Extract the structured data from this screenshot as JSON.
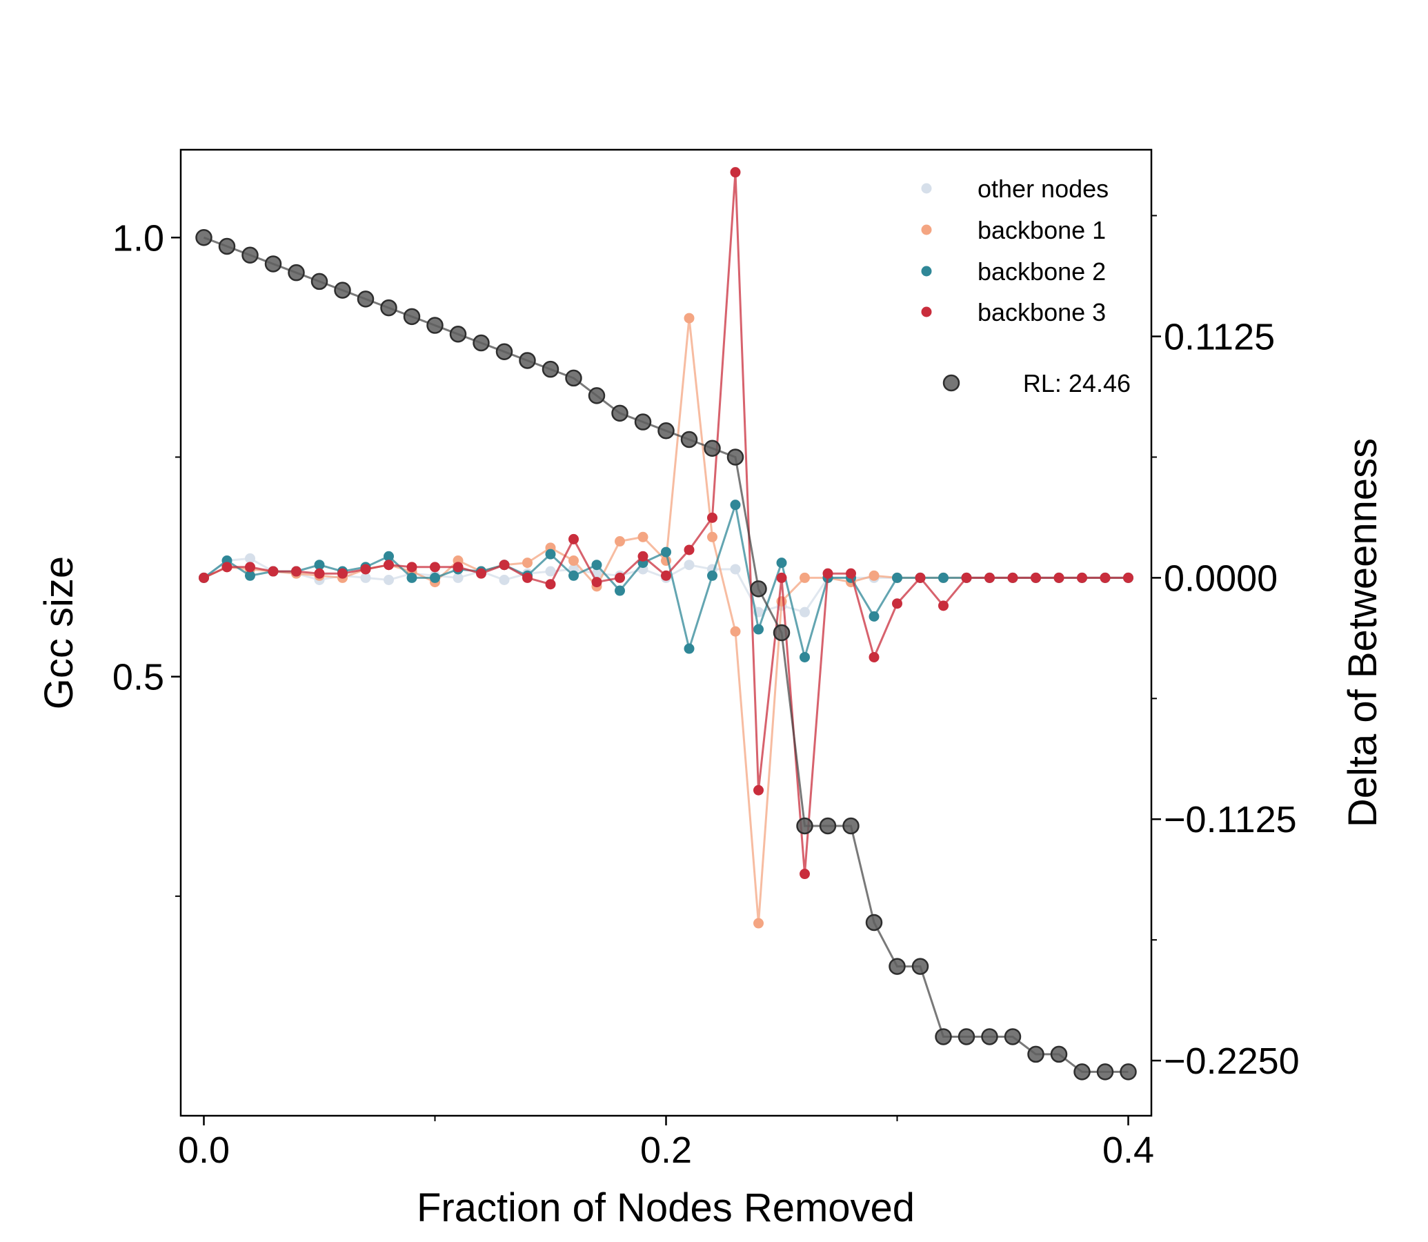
{
  "chart_data": {
    "type": "line",
    "xlabel": "Fraction of Nodes Removed",
    "ylabel_left": "Gcc size",
    "ylabel_right": "Delta of Betweenness",
    "xlim": [
      -0.01,
      0.41
    ],
    "ylim_left": [
      0.0,
      1.1
    ],
    "ylim_right": [
      -0.2507,
      0.1995
    ],
    "x_ticks": [
      {
        "value": 0.0,
        "label": "0.0"
      },
      {
        "value": 0.2,
        "label": "0.2"
      },
      {
        "value": 0.4,
        "label": "0.4"
      }
    ],
    "x_minor_ticks": [
      0.1,
      0.3
    ],
    "y_left_ticks": [
      {
        "value": 0.5,
        "label": "0.5"
      },
      {
        "value": 1.0,
        "label": "1.0"
      }
    ],
    "y_left_minor_ticks": [
      0.25,
      0.75
    ],
    "y_right_ticks": [
      {
        "value": 0.1125,
        "label": "0.1125"
      },
      {
        "value": 0.0,
        "label": "0.0000"
      },
      {
        "value": -0.1125,
        "label": "−0.1125"
      },
      {
        "value": -0.225,
        "label": "−0.2250"
      }
    ],
    "y_right_minor_ticks": [
      0.1688,
      0.05625,
      -0.05625,
      -0.16875
    ],
    "legend": {
      "position": "upper-right",
      "entries": [
        {
          "series": "other",
          "label": "other nodes"
        },
        {
          "series": "bb1",
          "label": "backbone 1"
        },
        {
          "series": "bb2",
          "label": "backbone 2"
        },
        {
          "series": "bb3",
          "label": "backbone 3"
        },
        {
          "series": "gcc",
          "label": "RL: 24.46"
        }
      ]
    },
    "gcc_series": {
      "id": "gcc",
      "name": "RL: 24.46",
      "color": "#404040",
      "axis": "left",
      "x": [
        0.0,
        0.01,
        0.02,
        0.03,
        0.04,
        0.05,
        0.06,
        0.07,
        0.08,
        0.09,
        0.1,
        0.11,
        0.12,
        0.13,
        0.14,
        0.15,
        0.16,
        0.17,
        0.18,
        0.19,
        0.2,
        0.21,
        0.22,
        0.23,
        0.24,
        0.25,
        0.26,
        0.27,
        0.28,
        0.29,
        0.3,
        0.31,
        0.32,
        0.33,
        0.34,
        0.35,
        0.36,
        0.37,
        0.38,
        0.39,
        0.4
      ],
      "y": [
        1.0,
        0.99,
        0.98,
        0.97,
        0.96,
        0.95,
        0.94,
        0.93,
        0.92,
        0.91,
        0.9,
        0.89,
        0.88,
        0.87,
        0.86,
        0.85,
        0.84,
        0.82,
        0.8,
        0.79,
        0.78,
        0.77,
        0.76,
        0.75,
        0.6,
        0.55,
        0.33,
        0.33,
        0.33,
        0.22,
        0.17,
        0.17,
        0.09,
        0.09,
        0.09,
        0.09,
        0.07,
        0.07,
        0.05,
        0.05,
        0.05
      ]
    },
    "delta_series": [
      {
        "id": "other",
        "name": "other nodes",
        "color": "#d6dfea",
        "axis": "right",
        "x": [
          0.0,
          0.01,
          0.02,
          0.03,
          0.04,
          0.05,
          0.06,
          0.07,
          0.08,
          0.09,
          0.1,
          0.11,
          0.12,
          0.13,
          0.14,
          0.15,
          0.16,
          0.17,
          0.18,
          0.19,
          0.2,
          0.21,
          0.22,
          0.23,
          0.24,
          0.25,
          0.26,
          0.27,
          0.28,
          0.29,
          0.3,
          0.31,
          0.32,
          0.33,
          0.34,
          0.35,
          0.36,
          0.37,
          0.38,
          0.39,
          0.4
        ],
        "y": [
          0.0,
          0.008,
          0.009,
          0.003,
          0.002,
          -0.001,
          0.001,
          0.0,
          -0.001,
          0.002,
          0.001,
          0.0,
          0.003,
          -0.001,
          0.002,
          0.003,
          0.004,
          0.002,
          0.001,
          0.004,
          0.0,
          0.006,
          0.004,
          0.004,
          -0.016,
          -0.013,
          -0.016,
          0.0,
          0.0,
          0.0,
          0.0,
          0.0,
          0.0,
          0.0,
          0.0,
          0.0,
          0.0,
          0.0,
          0.0,
          0.0,
          0.0
        ]
      },
      {
        "id": "bb1",
        "name": "backbone 1",
        "color": "#f4a582",
        "axis": "right",
        "x": [
          0.0,
          0.01,
          0.02,
          0.03,
          0.04,
          0.05,
          0.06,
          0.07,
          0.08,
          0.09,
          0.1,
          0.11,
          0.12,
          0.13,
          0.14,
          0.15,
          0.16,
          0.17,
          0.18,
          0.19,
          0.2,
          0.21,
          0.22,
          0.23,
          0.24,
          0.25,
          0.26,
          0.27,
          0.28,
          0.29,
          0.3,
          0.31,
          0.32,
          0.33,
          0.34,
          0.35,
          0.36,
          0.37,
          0.38,
          0.39,
          0.4
        ],
        "y": [
          0.0,
          0.005,
          0.004,
          0.003,
          0.002,
          0.001,
          0.0,
          0.004,
          0.006,
          0.003,
          -0.002,
          0.008,
          0.003,
          0.006,
          0.007,
          0.014,
          0.008,
          -0.004,
          0.017,
          0.019,
          0.008,
          0.121,
          0.019,
          -0.025,
          -0.161,
          -0.011,
          0.0,
          0.0,
          -0.002,
          0.001,
          0.0,
          0.0,
          0.0,
          0.0,
          0.0,
          0.0,
          0.0,
          0.0,
          0.0,
          0.0,
          0.0
        ]
      },
      {
        "id": "bb2",
        "name": "backbone 2",
        "color": "#2f8797",
        "axis": "right",
        "x": [
          0.0,
          0.01,
          0.02,
          0.03,
          0.04,
          0.05,
          0.06,
          0.07,
          0.08,
          0.09,
          0.1,
          0.11,
          0.12,
          0.13,
          0.14,
          0.15,
          0.16,
          0.17,
          0.18,
          0.19,
          0.2,
          0.21,
          0.22,
          0.23,
          0.24,
          0.25,
          0.26,
          0.27,
          0.28,
          0.29,
          0.3,
          0.31,
          0.32,
          0.33,
          0.34,
          0.35,
          0.36,
          0.37,
          0.38,
          0.39,
          0.4
        ],
        "y": [
          0.0,
          0.008,
          0.001,
          0.003,
          0.003,
          0.006,
          0.003,
          0.005,
          0.01,
          0.0,
          0.0,
          0.004,
          0.003,
          0.006,
          0.001,
          0.011,
          0.001,
          0.006,
          -0.006,
          0.007,
          0.012,
          -0.033,
          0.001,
          0.034,
          -0.024,
          0.007,
          -0.037,
          0.0,
          0.0,
          -0.018,
          0.0,
          0.0,
          0.0,
          0.0,
          0.0,
          0.0,
          0.0,
          0.0,
          0.0,
          0.0,
          0.0
        ]
      },
      {
        "id": "bb3",
        "name": "backbone 3",
        "color": "#c92d3c",
        "axis": "right",
        "x": [
          0.0,
          0.01,
          0.02,
          0.03,
          0.04,
          0.05,
          0.06,
          0.07,
          0.08,
          0.09,
          0.1,
          0.11,
          0.12,
          0.13,
          0.14,
          0.15,
          0.16,
          0.17,
          0.18,
          0.19,
          0.2,
          0.21,
          0.22,
          0.23,
          0.24,
          0.25,
          0.26,
          0.27,
          0.28,
          0.29,
          0.3,
          0.31,
          0.32,
          0.33,
          0.34,
          0.35,
          0.36,
          0.37,
          0.38,
          0.39,
          0.4
        ],
        "y": [
          0.0,
          0.005,
          0.005,
          0.003,
          0.003,
          0.002,
          0.002,
          0.004,
          0.006,
          0.005,
          0.005,
          0.005,
          0.002,
          0.006,
          0.0,
          -0.003,
          0.018,
          -0.002,
          0.0,
          0.01,
          0.001,
          0.013,
          0.028,
          0.189,
          -0.099,
          0.0,
          -0.138,
          0.002,
          0.002,
          -0.037,
          -0.012,
          0.0,
          -0.013,
          0.0,
          0.0,
          0.0,
          0.0,
          0.0,
          0.0,
          0.0,
          0.0
        ]
      }
    ]
  }
}
